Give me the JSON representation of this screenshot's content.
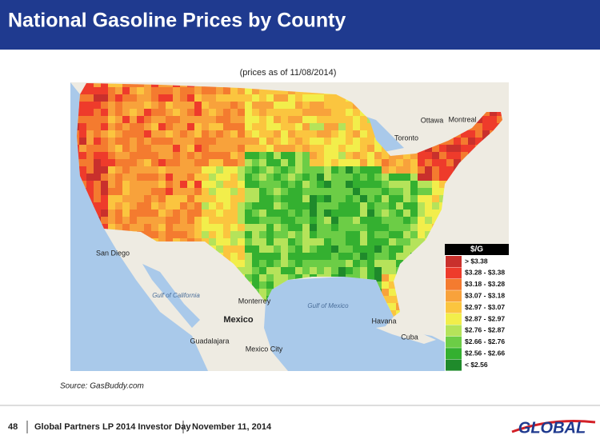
{
  "header": {
    "title": "National Gasoline Prices by County"
  },
  "subtitle": "(prices as of 11/08/2014)",
  "map": {
    "labels": [
      "Ottawa",
      "Montreal",
      "Toronto",
      "San Diego",
      "Gulf of California",
      "Monterrey",
      "Mexico",
      "Guadalajara",
      "Mexico City",
      "Gulf of Mexico",
      "Havana",
      "Cuba"
    ]
  },
  "legend": {
    "title": "$/G",
    "items": [
      {
        "label": "> $3.38",
        "color": "#c9302c"
      },
      {
        "label": "$3.28 - $3.38",
        "color": "#ee3b2b"
      },
      {
        "label": "$3.18 - $3.28",
        "color": "#f47b2f"
      },
      {
        "label": "$3.07 - $3.18",
        "color": "#f8a23b"
      },
      {
        "label": "$2.97 - $3.07",
        "color": "#fbc53f"
      },
      {
        "label": "$2.87 - $2.97",
        "color": "#f2ee4b"
      },
      {
        "label": "$2.76 - $2.87",
        "color": "#b5e35a"
      },
      {
        "label": "$2.66 - $2.76",
        "color": "#6ccd46"
      },
      {
        "label": "$2.56 - $2.66",
        "color": "#34b030"
      },
      {
        "label": "< $2.56",
        "color": "#1f8a2b"
      }
    ]
  },
  "source": "Source: GasBuddy.com",
  "footer": {
    "page": "48",
    "event": "Global Partners LP  2014 Investor Day",
    "date": "November 11, 2014",
    "logo": "GLOBAL"
  }
}
